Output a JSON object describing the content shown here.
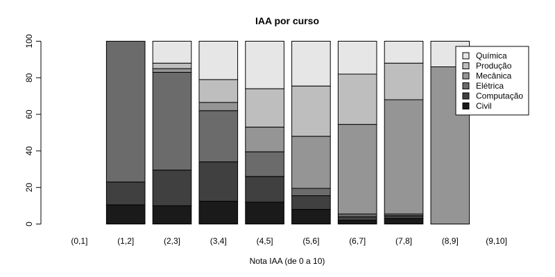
{
  "chart_data": {
    "type": "bar",
    "stacked": true,
    "title": "IAA por curso",
    "xlabel": "Nota IAA (de 0 a 10)",
    "ylabel": "",
    "ylim": [
      0,
      100
    ],
    "yticks": [
      0,
      20,
      40,
      60,
      80,
      100
    ],
    "categories": [
      "(0,1]",
      "(1,2]",
      "(2,3]",
      "(3,4]",
      "(4,5]",
      "(5,6]",
      "(6,7]",
      "(7,8]",
      "(8,9]",
      "(9,10]"
    ],
    "series": [
      {
        "name": "Civil",
        "color": "#1a1a1a",
        "values": [
          0,
          10.5,
          10,
          12.5,
          12,
          8,
          2,
          3,
          0,
          0
        ]
      },
      {
        "name": "Computação",
        "color": "#404040",
        "values": [
          0,
          12.5,
          19.5,
          21.5,
          14,
          7.5,
          2,
          1.5,
          0,
          0
        ]
      },
      {
        "name": "Elétrica",
        "color": "#6b6b6b",
        "values": [
          0,
          77,
          53.5,
          28,
          13.5,
          4,
          1.5,
          1,
          0,
          0
        ]
      },
      {
        "name": "Mecânica",
        "color": "#959595",
        "values": [
          0,
          0,
          2,
          4.5,
          13.5,
          28.5,
          49,
          62.5,
          86,
          0
        ]
      },
      {
        "name": "Produção",
        "color": "#bebebe",
        "values": [
          0,
          0,
          3,
          12.5,
          21,
          27.5,
          27.5,
          20,
          0,
          0
        ]
      },
      {
        "name": "Química",
        "color": "#e6e6e6",
        "values": [
          0,
          0,
          12,
          21,
          26,
          24.5,
          18,
          12,
          14,
          0
        ]
      }
    ],
    "legend_position": "top-right",
    "legend_order": [
      "Química",
      "Produção",
      "Mecânica",
      "Elétrica",
      "Computação",
      "Civil"
    ],
    "grid": false
  }
}
